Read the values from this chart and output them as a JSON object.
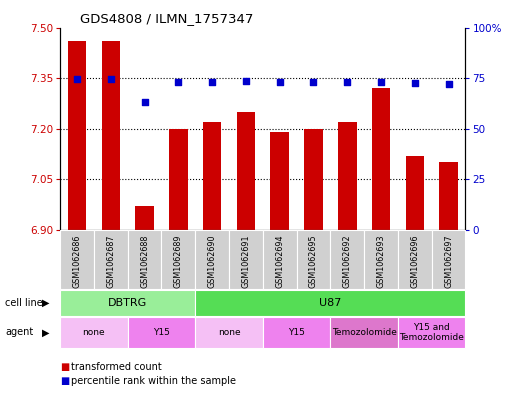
{
  "title": "GDS4808 / ILMN_1757347",
  "samples": [
    "GSM1062686",
    "GSM1062687",
    "GSM1062688",
    "GSM1062689",
    "GSM1062690",
    "GSM1062691",
    "GSM1062694",
    "GSM1062695",
    "GSM1062692",
    "GSM1062693",
    "GSM1062696",
    "GSM1062697"
  ],
  "transformed_count": [
    7.46,
    7.46,
    6.97,
    7.2,
    7.22,
    7.25,
    7.19,
    7.2,
    7.22,
    7.32,
    7.12,
    7.1
  ],
  "percentile_rank_y": [
    7.348,
    7.348,
    7.278,
    7.338,
    7.338,
    7.342,
    7.338,
    7.338,
    7.338,
    7.338,
    7.335,
    7.333
  ],
  "ylim_left": [
    6.9,
    7.5
  ],
  "ylim_right": [
    0,
    100
  ],
  "yticks_left": [
    6.9,
    7.05,
    7.2,
    7.35,
    7.5
  ],
  "yticks_right": [
    0,
    25,
    50,
    75,
    100
  ],
  "ytick_right_labels": [
    "0",
    "25",
    "50",
    "75",
    "100%"
  ],
  "bar_color": "#cc0000",
  "dot_color": "#0000cc",
  "grid_lines": [
    7.05,
    7.2,
    7.35
  ],
  "cell_line_data": [
    {
      "label": "DBTRG",
      "start": 0,
      "end": 3,
      "color": "#99ee99"
    },
    {
      "label": "U87",
      "start": 4,
      "end": 11,
      "color": "#55dd55"
    }
  ],
  "agent_data": [
    {
      "label": "none",
      "start": 0,
      "end": 1,
      "color": "#f5c0f5"
    },
    {
      "label": "Y15",
      "start": 2,
      "end": 3,
      "color": "#ee82ee"
    },
    {
      "label": "none",
      "start": 4,
      "end": 5,
      "color": "#f5c0f5"
    },
    {
      "label": "Y15",
      "start": 6,
      "end": 7,
      "color": "#ee82ee"
    },
    {
      "label": "Temozolomide",
      "start": 8,
      "end": 9,
      "color": "#dd77cc"
    },
    {
      "label": "Y15 and\nTemozolomide",
      "start": 10,
      "end": 11,
      "color": "#ee82ee"
    }
  ],
  "cell_line_label": "cell line",
  "agent_label": "agent",
  "legend_items": [
    {
      "color": "#cc0000",
      "label": "transformed count"
    },
    {
      "color": "#0000cc",
      "label": "percentile rank within the sample"
    }
  ]
}
